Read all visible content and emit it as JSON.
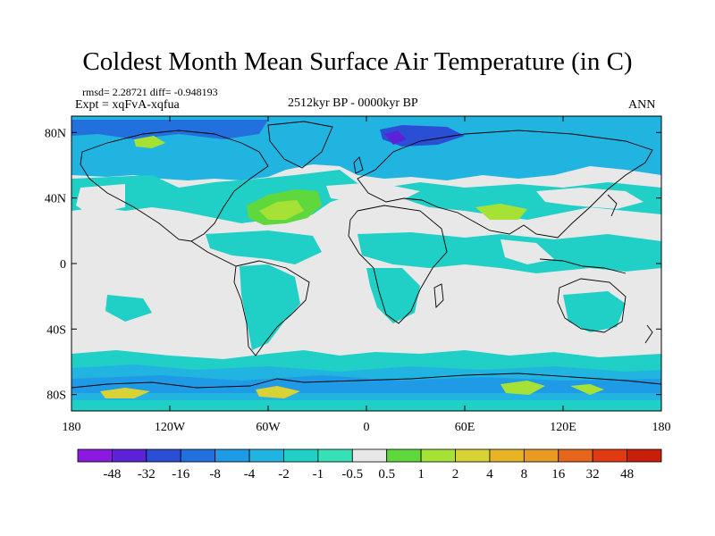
{
  "title": "Coldest Month Mean Surface Air Temperature (in C)",
  "stats_text": "rmsd= 2.28721 diff= -0.948193",
  "experiment_text": "Expt = xqFvA-xqfua",
  "period_text": "2512kyr BP - 0000kyr BP",
  "season_text": "ANN",
  "map": {
    "projection": "cylindrical equidistant",
    "lon_range": [
      -180,
      180
    ],
    "lat_range": [
      -90,
      90
    ],
    "background_color": "#e8e8e8",
    "x_tick_labels": [
      "180",
      "120W",
      "60W",
      "0",
      "60E",
      "120E",
      "180"
    ],
    "x_tick_values": [
      -180,
      -120,
      -60,
      0,
      60,
      120,
      180
    ],
    "y_tick_labels": [
      "80N",
      "40N",
      "0",
      "40S",
      "80S"
    ],
    "y_tick_values": [
      80,
      40,
      0,
      -40,
      -80
    ]
  },
  "colorbar": {
    "labels": [
      "-48",
      "-32",
      "-16",
      "-8",
      "-4",
      "-2",
      "-1",
      "-0.5",
      "0.5",
      "1",
      "2",
      "4",
      "8",
      "16",
      "32",
      "48"
    ],
    "colors": [
      "#8b1ae0",
      "#5b22d8",
      "#2a4fd4",
      "#2170de",
      "#1f9ae6",
      "#22b4e0",
      "#20cfc6",
      "#38e0b8",
      "#e8e8e8",
      "#5ed83c",
      "#a6e236",
      "#d8d236",
      "#e7b428",
      "#e89a22",
      "#e6661c",
      "#e03a12",
      "#c81e0a"
    ]
  },
  "chart_data": {
    "type": "heatmap",
    "title": "Coldest Month Mean Surface Air Temperature (in C)",
    "x_range": [
      -180,
      180
    ],
    "y_range": [
      -90,
      90
    ],
    "contour_levels": [
      -48,
      -32,
      -16,
      -8,
      -4,
      -2,
      -1,
      -0.5,
      0.5,
      1,
      2,
      4,
      8,
      16,
      32,
      48
    ],
    "rmsd": 2.28721,
    "diff": -0.948193
  }
}
